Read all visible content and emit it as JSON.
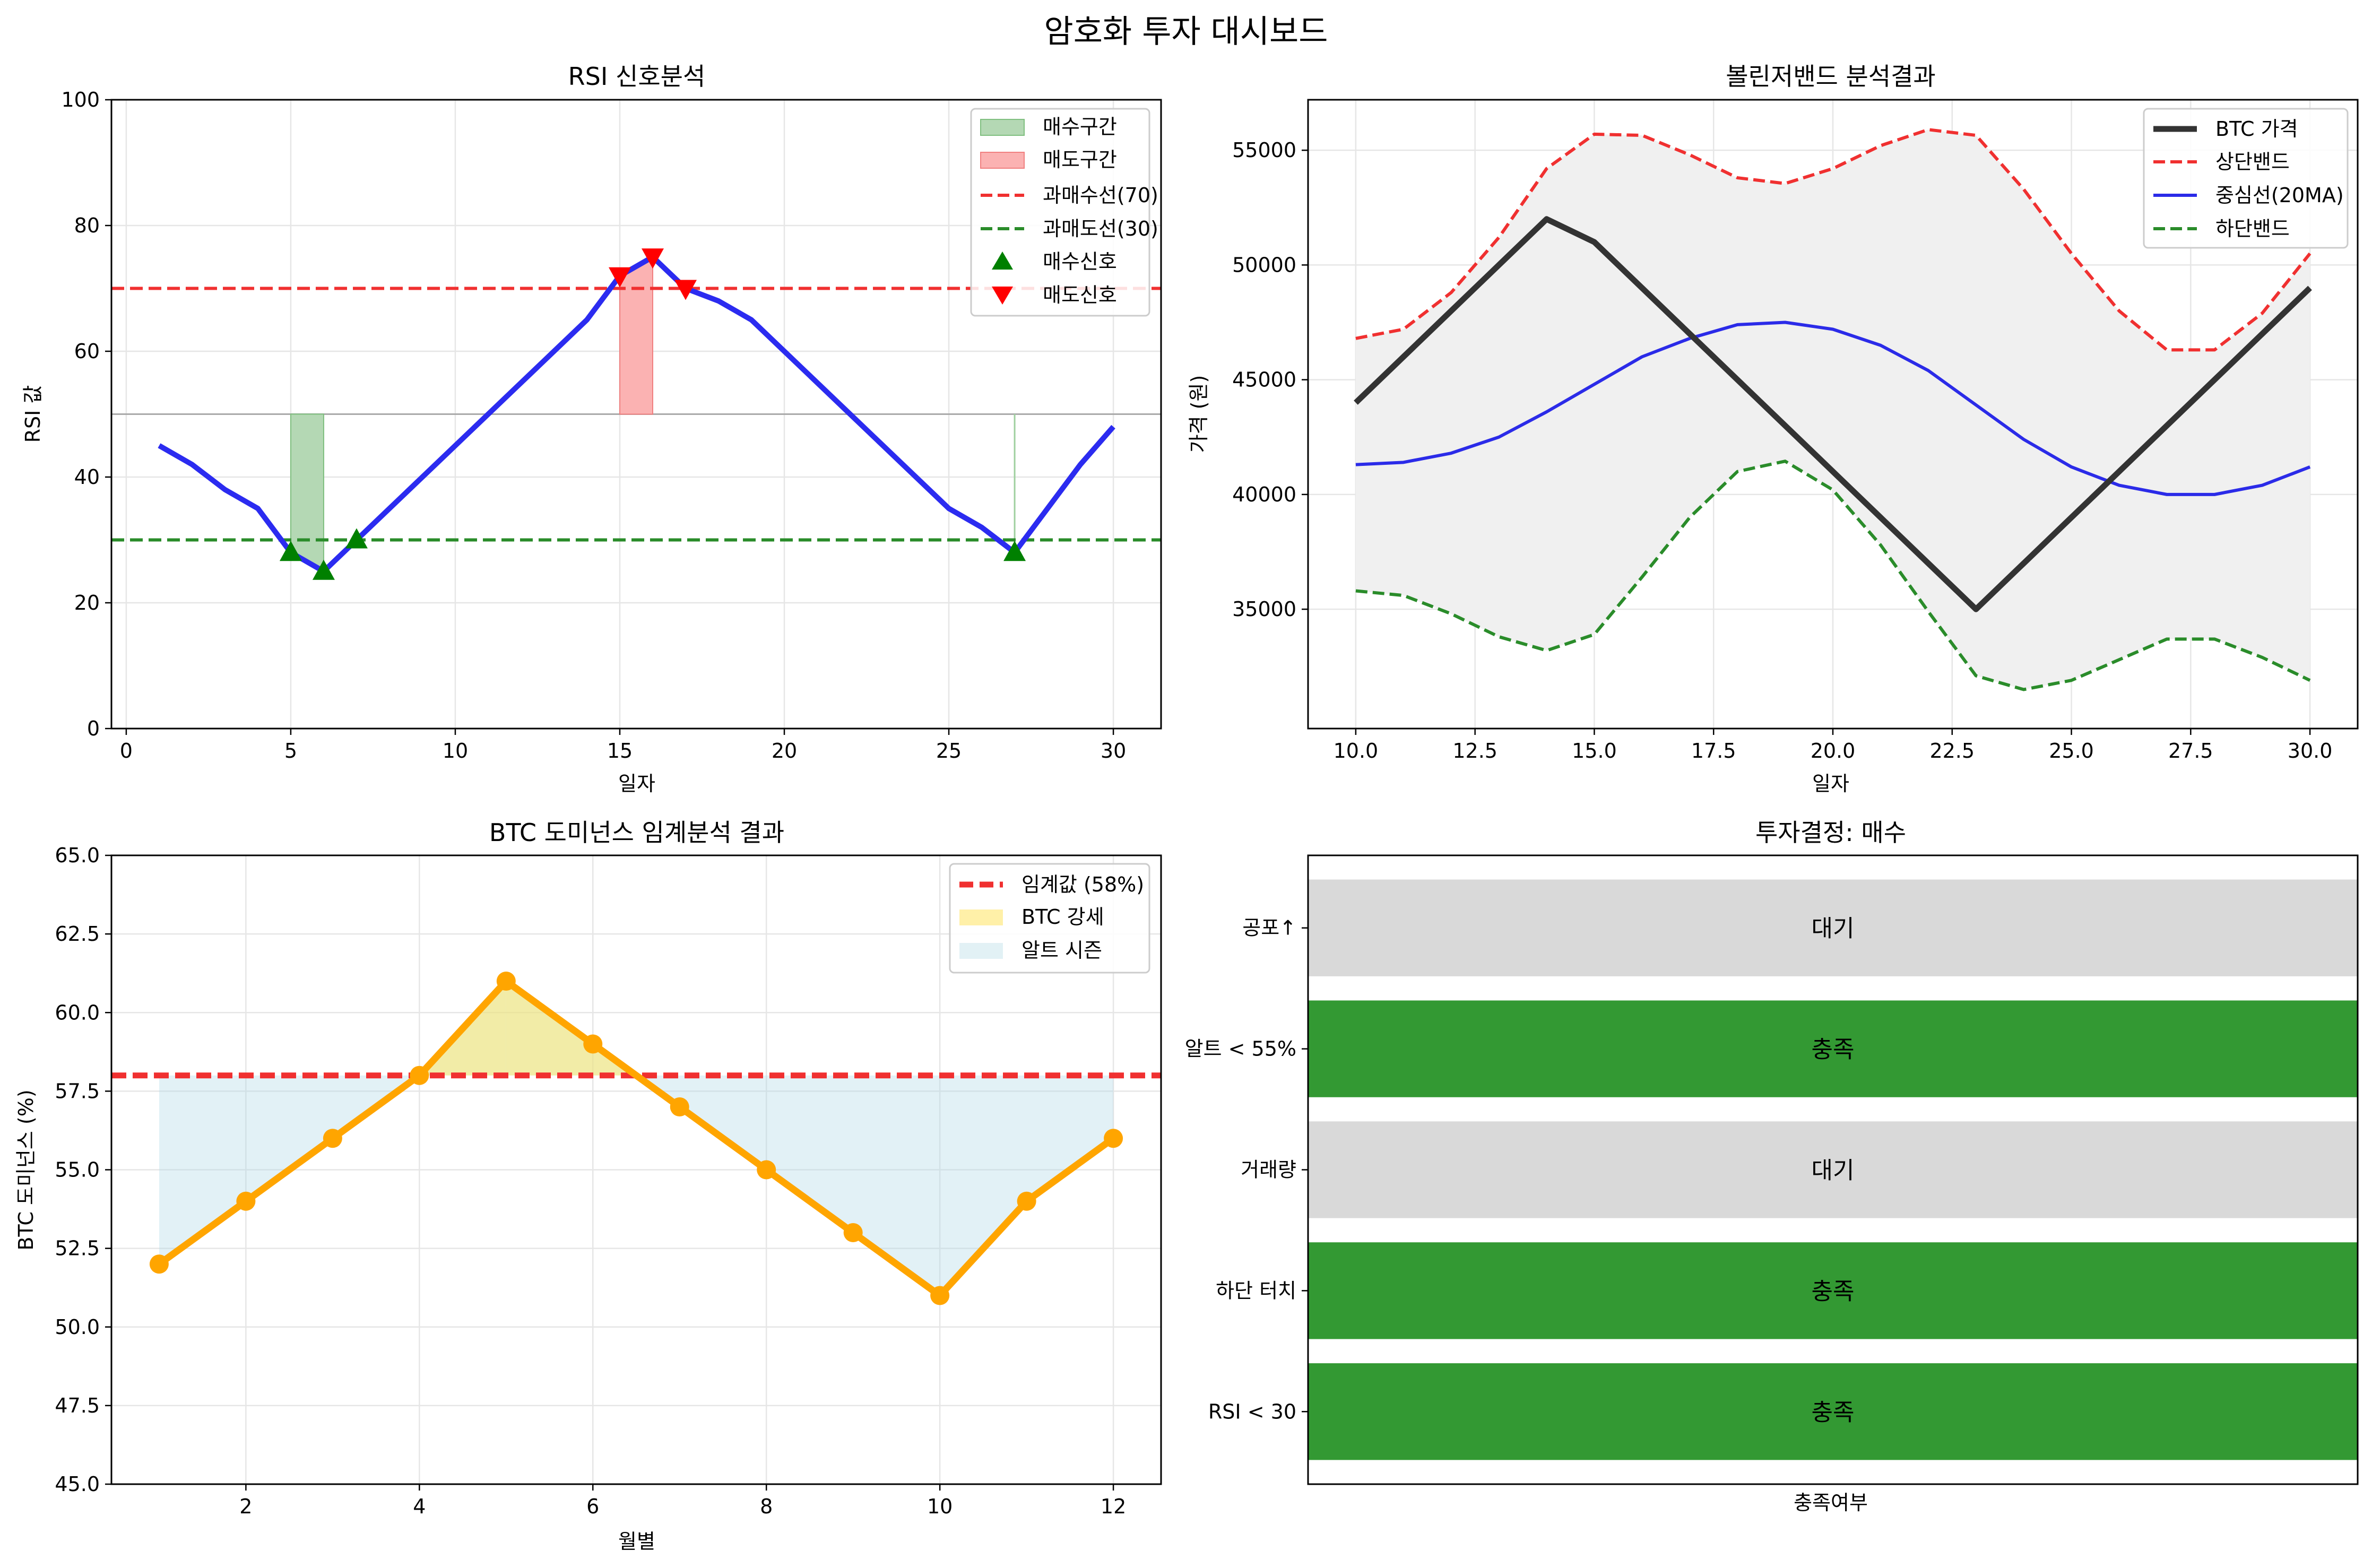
{
  "figure": {
    "suptitle": "암호화 투자 대시보드"
  },
  "chart_data": [
    {
      "id": "rsi",
      "type": "line",
      "title": "RSI 신호분석",
      "xlabel": "일자",
      "ylabel": "RSI 값",
      "xlim": [
        -0.45,
        31.45
      ],
      "ylim": [
        0,
        100
      ],
      "xticks": [
        0,
        5,
        10,
        15,
        20,
        25,
        30
      ],
      "yticks": [
        0,
        20,
        40,
        60,
        80,
        100
      ],
      "grid": true,
      "legend_position": "top-right",
      "legend": [
        "매수구간",
        "매도구간",
        "과매수선(70)",
        "과매도선(30)",
        "매수신호",
        "매도신호"
      ],
      "midline": 50,
      "overbought": 70,
      "oversold": 30,
      "series": [
        {
          "color": "#2b2bf0",
          "x": [
            1,
            2,
            3,
            4,
            5,
            6,
            7,
            8,
            9,
            10,
            11,
            12,
            13,
            14,
            15,
            16,
            17,
            18,
            19,
            20,
            21,
            22,
            23,
            24,
            25,
            26,
            27,
            28,
            29,
            30
          ],
          "y": [
            45,
            42,
            38,
            35,
            28,
            25,
            30,
            35,
            40,
            45,
            50,
            55,
            60,
            65,
            72,
            75,
            70,
            68,
            65,
            60,
            55,
            50,
            45,
            40,
            35,
            32,
            28,
            35,
            42,
            48
          ]
        }
      ],
      "buy_zones": [
        [
          5,
          6
        ],
        [
          27,
          27
        ]
      ],
      "sell_zones": [
        [
          15,
          16
        ]
      ],
      "buy_signals": {
        "x": [
          5,
          6,
          7,
          27
        ],
        "y": [
          28,
          25,
          30,
          28
        ]
      },
      "sell_signals": {
        "x": [
          15,
          16,
          17
        ],
        "y": [
          72,
          75,
          70
        ]
      }
    },
    {
      "id": "bollinger",
      "type": "line",
      "title": "볼린저밴드 분석결과",
      "xlabel": "일자",
      "ylabel": "가격 (원)",
      "xlim": [
        9,
        31
      ],
      "ylim": [
        29800,
        57200
      ],
      "xticks": [
        10.0,
        12.5,
        15.0,
        17.5,
        20.0,
        22.5,
        25.0,
        27.5,
        30.0
      ],
      "yticks": [
        35000,
        40000,
        45000,
        50000,
        55000
      ],
      "grid": true,
      "legend_position": "top-right",
      "x": [
        10,
        11,
        12,
        13,
        14,
        15,
        16,
        17,
        18,
        19,
        20,
        21,
        22,
        23,
        24,
        25,
        26,
        27,
        28,
        29,
        30
      ],
      "series": [
        {
          "name": "BTC 가격",
          "color": "#333333",
          "style": "solid",
          "values": [
            44000,
            46000,
            48000,
            50000,
            52000,
            51000,
            49000,
            47000,
            45000,
            43000,
            41000,
            39000,
            37000,
            35000,
            37000,
            39000,
            41000,
            43000,
            45000,
            47000,
            49000
          ]
        },
        {
          "name": "상단밴드",
          "color": "#f03030",
          "style": "dashed",
          "values": [
            46800,
            47200,
            48800,
            51200,
            54200,
            55700,
            55650,
            54800,
            53800,
            53550,
            54200,
            55200,
            55900,
            55650,
            53300,
            50500,
            48000,
            46300,
            46300,
            47900,
            50500
          ]
        },
        {
          "name": "중심선(20MA)",
          "color": "#2b2be8",
          "style": "solid",
          "values": [
            41300,
            41400,
            41800,
            42500,
            43600,
            44800,
            46000,
            46800,
            47400,
            47500,
            47200,
            46500,
            45400,
            43900,
            42400,
            41200,
            40400,
            40000,
            40000,
            40400,
            41200
          ]
        },
        {
          "name": "하단밴드",
          "color": "#2a8c2a",
          "style": "dashed",
          "values": [
            35800,
            35600,
            34800,
            33800,
            33200,
            33900,
            36400,
            39000,
            41000,
            41450,
            40200,
            37800,
            34900,
            32100,
            31500,
            31900,
            32800,
            33700,
            33700,
            32900,
            31900
          ]
        }
      ]
    },
    {
      "id": "dominance",
      "type": "line",
      "title": "BTC 도미넌스 임계분석 결과",
      "xlabel": "월별",
      "ylabel": "BTC 도미넌스 (%)",
      "xlim": [
        0.45,
        12.55
      ],
      "ylim": [
        45,
        65
      ],
      "xticks": [
        2,
        4,
        6,
        8,
        10,
        12
      ],
      "yticks": [
        45.0,
        47.5,
        50.0,
        52.5,
        55.0,
        57.5,
        60.0,
        62.5,
        65.0
      ],
      "grid": true,
      "legend_position": "top-right",
      "threshold": {
        "name": "임계값 (58%)",
        "value": 58
      },
      "fill_labels": [
        "BTC 강세",
        "알트 시즌"
      ],
      "series": [
        {
          "color": "#ffa500",
          "x": [
            1,
            2,
            3,
            4,
            5,
            6,
            7,
            8,
            9,
            10,
            11,
            12
          ],
          "values": [
            52,
            54,
            56,
            58,
            61,
            59,
            57,
            55,
            53,
            51,
            54,
            56
          ]
        }
      ]
    },
    {
      "id": "checklist",
      "type": "bar",
      "title": "투자결정: 매수",
      "xlabel": "충족여부",
      "categories": [
        "RSI < 30",
        "하단 터치",
        "거래량",
        "알트 < 55%",
        "공포↑"
      ],
      "statuses": [
        "충족",
        "충족",
        "대기",
        "충족",
        "대기"
      ],
      "met": [
        true,
        true,
        false,
        true,
        false
      ],
      "colors": {
        "met": "#339933",
        "unmet": "#d9d9d9"
      }
    }
  ]
}
